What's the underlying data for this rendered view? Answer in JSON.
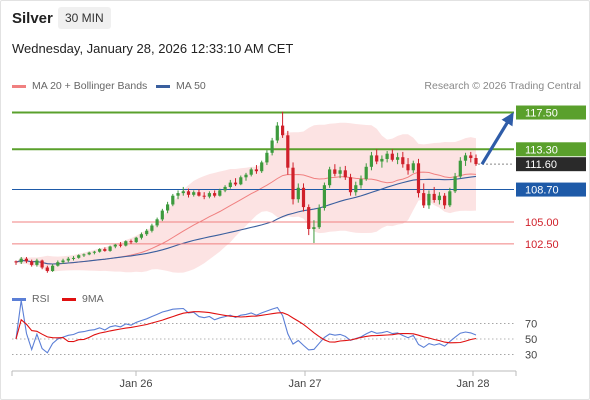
{
  "header": {
    "title": "Silver",
    "timeframe": "30 MIN"
  },
  "timestamp": "Wednesday, January 28, 2026 12:33:10 AM CET",
  "legend": {
    "ma20": {
      "label": "MA 20 + Bollinger Bands",
      "color": "#f08080"
    },
    "ma50": {
      "label": "MA 50",
      "color": "#3a5f9e"
    },
    "rsi": {
      "label": "RSI",
      "color": "#5b7fd6"
    },
    "rsi_ma": {
      "label": "9MA",
      "color": "#e01010"
    }
  },
  "credit": "Research © 2026 Trading Central",
  "colors": {
    "up": "#3d9a3d",
    "down": "#d0202a",
    "resistance": "#5aa02c",
    "support": "#f08080",
    "pivot": "#1e5aa8",
    "last": "#2a2a2a",
    "arrow": "#2e5ca8"
  },
  "chart_data": {
    "type": "candlestick",
    "instrument": "Silver",
    "timeframe": "30 MIN",
    "x_ticks": [
      "Jan 26",
      "Jan 27",
      "Jan 28"
    ],
    "price_range": [
      97.8,
      119.5
    ],
    "levels": [
      {
        "value": 117.5,
        "label": "117.50",
        "kind": "resistance"
      },
      {
        "value": 113.3,
        "label": "113.30",
        "kind": "resistance"
      },
      {
        "value": 111.6,
        "label": "111.60",
        "kind": "last"
      },
      {
        "value": 108.7,
        "label": "108.70",
        "kind": "pivot"
      },
      {
        "value": 105.0,
        "label": "105.00",
        "kind": "support"
      },
      {
        "value": 102.5,
        "label": "102.50",
        "kind": "support"
      }
    ],
    "forecast_arrow": {
      "from": 111.6,
      "to": 117.5
    },
    "candles": [
      [
        100.5,
        100.6,
        100.1,
        100.4
      ],
      [
        100.4,
        101.0,
        100.2,
        100.8
      ],
      [
        100.8,
        101.0,
        100.3,
        100.5
      ],
      [
        100.5,
        100.7,
        99.9,
        100.1
      ],
      [
        100.1,
        100.8,
        99.9,
        100.6
      ],
      [
        100.6,
        100.7,
        99.6,
        99.8
      ],
      [
        99.8,
        100.0,
        99.2,
        99.4
      ],
      [
        99.4,
        100.2,
        99.3,
        100.0
      ],
      [
        100.0,
        100.6,
        99.9,
        100.4
      ],
      [
        100.4,
        100.8,
        100.2,
        100.6
      ],
      [
        100.6,
        101.0,
        100.4,
        100.8
      ],
      [
        100.8,
        101.1,
        100.6,
        100.9
      ],
      [
        100.9,
        101.3,
        100.8,
        101.2
      ],
      [
        101.2,
        101.4,
        101.0,
        101.3
      ],
      [
        101.3,
        101.6,
        101.2,
        101.5
      ],
      [
        101.5,
        101.7,
        101.3,
        101.6
      ],
      [
        101.6,
        102.0,
        101.5,
        101.9
      ],
      [
        101.9,
        102.1,
        101.6,
        101.7
      ],
      [
        101.7,
        102.3,
        101.6,
        102.2
      ],
      [
        102.2,
        102.5,
        102.0,
        102.4
      ],
      [
        102.4,
        102.7,
        102.1,
        102.3
      ],
      [
        102.3,
        102.9,
        102.2,
        102.8
      ],
      [
        102.8,
        103.0,
        102.5,
        102.7
      ],
      [
        102.7,
        103.3,
        102.6,
        103.2
      ],
      [
        103.2,
        103.8,
        103.0,
        103.6
      ],
      [
        103.6,
        104.2,
        103.4,
        104.0
      ],
      [
        104.0,
        104.8,
        103.8,
        104.6
      ],
      [
        104.6,
        105.5,
        104.4,
        105.3
      ],
      [
        105.3,
        106.5,
        105.1,
        106.3
      ],
      [
        106.3,
        107.3,
        106.0,
        107.0
      ],
      [
        107.0,
        108.2,
        106.8,
        108.0
      ],
      [
        108.0,
        108.6,
        107.6,
        108.3
      ],
      [
        108.3,
        109.0,
        108.0,
        108.5
      ],
      [
        108.5,
        108.8,
        107.8,
        108.1
      ],
      [
        108.1,
        108.6,
        107.9,
        108.4
      ],
      [
        108.4,
        108.7,
        107.9,
        108.0
      ],
      [
        108.0,
        108.4,
        107.6,
        107.9
      ],
      [
        107.9,
        108.5,
        107.7,
        108.3
      ],
      [
        108.3,
        108.6,
        107.8,
        108.0
      ],
      [
        108.0,
        108.8,
        107.9,
        108.6
      ],
      [
        108.6,
        109.2,
        108.4,
        109.0
      ],
      [
        109.0,
        109.8,
        108.8,
        109.5
      ],
      [
        109.5,
        110.0,
        109.1,
        109.3
      ],
      [
        109.3,
        110.3,
        109.2,
        110.1
      ],
      [
        110.1,
        110.6,
        109.7,
        110.4
      ],
      [
        110.4,
        111.2,
        110.2,
        111.0
      ],
      [
        111.0,
        111.5,
        110.5,
        110.8
      ],
      [
        110.8,
        112.0,
        110.6,
        111.8
      ],
      [
        111.8,
        113.2,
        111.5,
        112.9
      ],
      [
        112.9,
        114.6,
        112.6,
        114.3
      ],
      [
        114.3,
        116.4,
        114.0,
        116.0
      ],
      [
        116.0,
        117.6,
        114.6,
        114.9
      ],
      [
        114.9,
        115.4,
        110.4,
        111.2
      ],
      [
        111.2,
        111.8,
        107.0,
        107.6
      ],
      [
        107.6,
        109.4,
        107.2,
        108.9
      ],
      [
        108.9,
        109.4,
        106.2,
        106.7
      ],
      [
        106.7,
        107.0,
        103.5,
        104.2
      ],
      [
        104.2,
        105.2,
        102.6,
        104.4
      ],
      [
        104.4,
        107.0,
        104.2,
        106.6
      ],
      [
        106.6,
        109.5,
        106.3,
        109.2
      ],
      [
        109.2,
        111.3,
        108.9,
        111.0
      ],
      [
        111.0,
        111.6,
        110.2,
        110.5
      ],
      [
        110.5,
        111.3,
        110.0,
        110.9
      ],
      [
        110.9,
        111.4,
        109.8,
        110.1
      ],
      [
        110.1,
        110.5,
        108.0,
        108.4
      ],
      [
        108.4,
        109.6,
        108.0,
        109.2
      ],
      [
        109.2,
        110.3,
        108.8,
        109.9
      ],
      [
        109.9,
        111.7,
        109.7,
        111.3
      ],
      [
        111.3,
        113.0,
        110.9,
        112.6
      ],
      [
        112.6,
        113.3,
        111.6,
        111.9
      ],
      [
        111.9,
        112.6,
        111.2,
        112.2
      ],
      [
        112.2,
        113.1,
        111.8,
        112.8
      ],
      [
        112.8,
        113.3,
        111.9,
        112.1
      ],
      [
        112.1,
        112.9,
        111.6,
        112.4
      ],
      [
        112.4,
        113.0,
        111.2,
        111.6
      ],
      [
        111.6,
        112.3,
        110.4,
        110.9
      ],
      [
        110.9,
        112.0,
        110.6,
        111.7
      ],
      [
        111.7,
        112.2,
        107.8,
        108.3
      ],
      [
        108.3,
        109.4,
        106.6,
        106.9
      ],
      [
        106.9,
        108.6,
        106.5,
        108.2
      ],
      [
        108.2,
        109.0,
        107.2,
        107.5
      ],
      [
        107.5,
        108.4,
        107.0,
        108.0
      ],
      [
        108.0,
        108.3,
        106.5,
        106.9
      ],
      [
        106.9,
        108.9,
        106.7,
        108.5
      ],
      [
        108.5,
        110.6,
        108.3,
        110.2
      ],
      [
        110.2,
        112.4,
        110.0,
        112.0
      ],
      [
        112.0,
        112.9,
        111.4,
        112.6
      ],
      [
        112.6,
        113.0,
        111.8,
        112.3
      ],
      [
        112.3,
        112.7,
        111.4,
        111.6
      ]
    ],
    "rsi_axis": {
      "ticks": [
        70,
        50,
        30
      ],
      "range": [
        15,
        85
      ]
    }
  }
}
